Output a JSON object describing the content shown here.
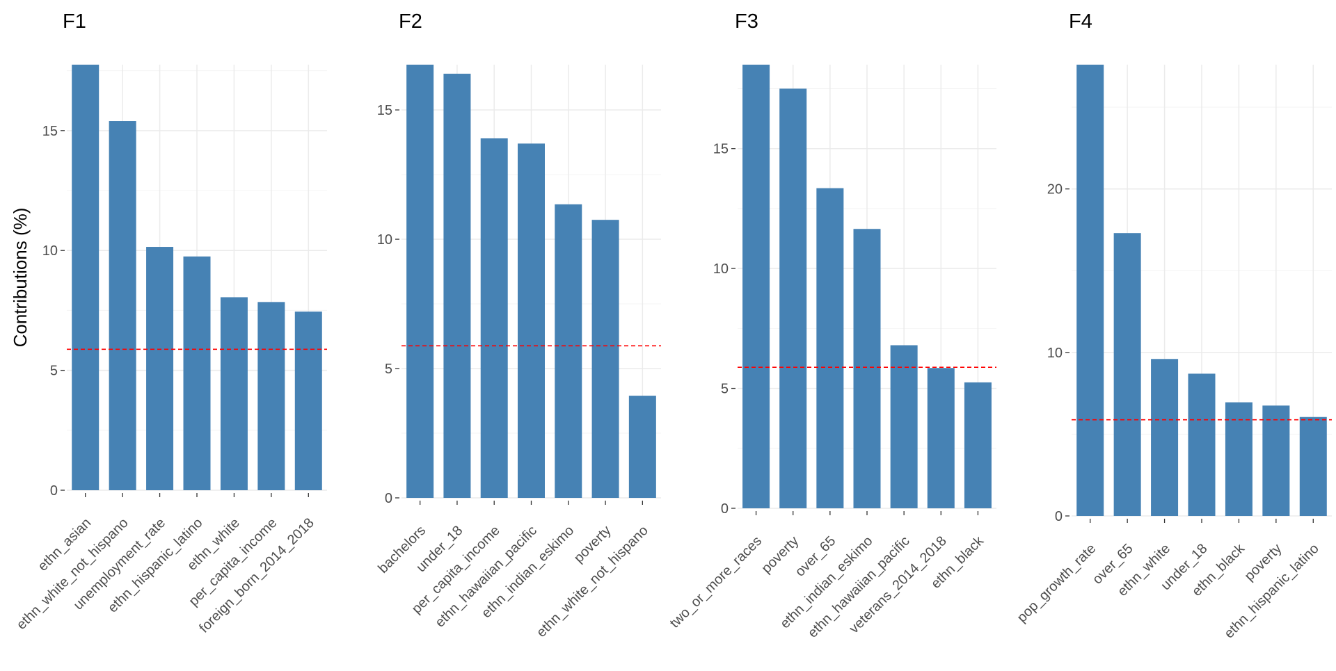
{
  "chart_data": [
    {
      "type": "bar",
      "title": "F1",
      "ylabel": "Contributions (%)",
      "categories": [
        "ethn_asian",
        "ethn_white_not_hispano",
        "unemployment_rate",
        "ethn_hispanic_latino",
        "ethn_white",
        "per_capita_income",
        "foreign_born_2014_2018"
      ],
      "values": [
        17.75,
        15.4,
        10.15,
        9.75,
        8.05,
        7.85,
        7.45
      ],
      "reference_line": 5.88,
      "ylim": [
        0,
        17.75
      ],
      "yticks": [
        0,
        5,
        10,
        15
      ],
      "grid": true
    },
    {
      "type": "bar",
      "title": "F2",
      "ylabel": "",
      "categories": [
        "bachelors",
        "under_18",
        "per_capita_income",
        "ethn_hawaiian_pacific",
        "ethn_indian_eskimo",
        "poverty",
        "ethn_white_not_hispano"
      ],
      "values": [
        16.75,
        16.4,
        13.9,
        13.7,
        11.35,
        10.75,
        3.95
      ],
      "reference_line": 5.88,
      "ylim": [
        0,
        16.75
      ],
      "yticks": [
        0,
        5,
        10,
        15
      ],
      "grid": true
    },
    {
      "type": "bar",
      "title": "F3",
      "ylabel": "",
      "categories": [
        "two_or_more_races",
        "poverty",
        "over_65",
        "ethn_indian_eskimo",
        "ethn_hawaiian_pacific",
        "veterans_2014_2018",
        "ethn_black"
      ],
      "values": [
        18.5,
        17.5,
        13.35,
        11.65,
        6.8,
        5.85,
        5.25
      ],
      "reference_line": 5.88,
      "ylim": [
        0,
        18.5
      ],
      "yticks": [
        0,
        5,
        10,
        15
      ],
      "grid": true
    },
    {
      "type": "bar",
      "title": "F4",
      "ylabel": "",
      "categories": [
        "pop_growth_rate",
        "over_65",
        "ethn_white",
        "under_18",
        "ethn_black",
        "poverty",
        "ethn_hispanic_latino"
      ],
      "values": [
        27.6,
        17.3,
        9.6,
        8.7,
        6.95,
        6.75,
        6.05
      ],
      "reference_line": 5.88,
      "ylim": [
        0,
        27.6
      ],
      "yticks": [
        0,
        10,
        20
      ],
      "grid": true
    }
  ],
  "colors": {
    "bar": "#4682b4",
    "reference_line": "#ff0000",
    "grid_major": "#ebebeb",
    "grid_minor": "#f4f4f4",
    "tick_text": "#4d4d4d",
    "title_text": "#000000"
  }
}
